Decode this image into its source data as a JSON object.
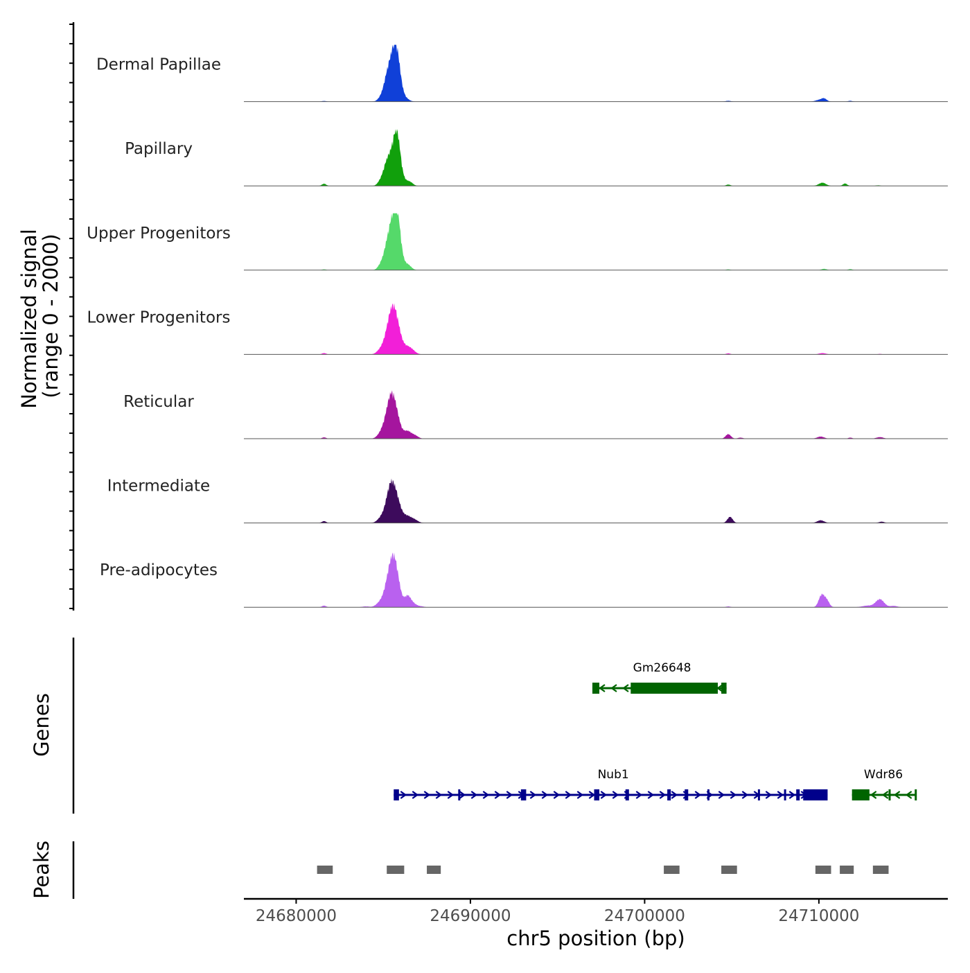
{
  "chart_data": {
    "type": "area",
    "title": "",
    "xlabel": "chr5 position (bp)",
    "ylabel_line1": "Normalized signal",
    "ylabel_line2": "(range 0 - 2000)",
    "xlim": [
      24677000,
      24717400
    ],
    "ylim": [
      0,
      2000
    ],
    "x_ticks": [
      24680000,
      24690000,
      24700000,
      24710000
    ],
    "x_tick_labels": [
      "24680000",
      "24690000",
      "24700000",
      "24710000"
    ],
    "tracks": [
      {
        "name": "Dermal Papillae",
        "color": "#1040d8",
        "peaks": [
          [
            24685500,
            1150,
            320
          ],
          [
            24685750,
            1320,
            220
          ],
          [
            24685200,
            350,
            200
          ],
          [
            24684800,
            60,
            150
          ],
          [
            24686300,
            90,
            200
          ],
          [
            24681600,
            25,
            120
          ],
          [
            24704800,
            30,
            150
          ],
          [
            24710000,
            60,
            200
          ],
          [
            24710300,
            110,
            150
          ],
          [
            24711800,
            30,
            120
          ]
        ]
      },
      {
        "name": "Papillary",
        "color": "#11a00c",
        "peaks": [
          [
            24685500,
            1000,
            300
          ],
          [
            24685800,
            1440,
            200
          ],
          [
            24685150,
            400,
            200
          ],
          [
            24684800,
            100,
            150
          ],
          [
            24686350,
            150,
            200
          ],
          [
            24686600,
            70,
            150
          ],
          [
            24681600,
            80,
            120
          ],
          [
            24704800,
            50,
            120
          ],
          [
            24710200,
            120,
            200
          ],
          [
            24711500,
            90,
            120
          ],
          [
            24713400,
            20,
            120
          ]
        ]
      },
      {
        "name": "Upper Progenitors",
        "color": "#55d96a",
        "peaks": [
          [
            24685550,
            1500,
            300
          ],
          [
            24685800,
            1300,
            200
          ],
          [
            24685200,
            400,
            250
          ],
          [
            24684800,
            80,
            150
          ],
          [
            24686400,
            200,
            200
          ],
          [
            24681600,
            30,
            120
          ],
          [
            24704800,
            30,
            120
          ],
          [
            24710300,
            50,
            150
          ],
          [
            24711800,
            40,
            120
          ]
        ]
      },
      {
        "name": "Lower Progenitors",
        "color": "#f21fd8",
        "peaks": [
          [
            24685600,
            1650,
            320
          ],
          [
            24685300,
            300,
            300
          ],
          [
            24684800,
            100,
            200
          ],
          [
            24686400,
            220,
            220
          ],
          [
            24686700,
            100,
            200
          ],
          [
            24681600,
            50,
            120
          ],
          [
            24704800,
            40,
            120
          ],
          [
            24710200,
            50,
            200
          ],
          [
            24713500,
            20,
            120
          ]
        ]
      },
      {
        "name": "Reticular",
        "color": "#a5159e",
        "peaks": [
          [
            24685600,
            1200,
            300
          ],
          [
            24685350,
            700,
            250
          ],
          [
            24684900,
            200,
            220
          ],
          [
            24686400,
            250,
            200
          ],
          [
            24686800,
            120,
            200
          ],
          [
            24681600,
            50,
            120
          ],
          [
            24704800,
            170,
            150
          ],
          [
            24705500,
            40,
            150
          ],
          [
            24710100,
            80,
            200
          ],
          [
            24711800,
            40,
            120
          ],
          [
            24713500,
            60,
            200
          ]
        ]
      },
      {
        "name": "Intermediate",
        "color": "#3d0b5c",
        "peaks": [
          [
            24685650,
            1150,
            300
          ],
          [
            24685350,
            700,
            220
          ],
          [
            24684900,
            200,
            220
          ],
          [
            24686400,
            220,
            220
          ],
          [
            24686800,
            110,
            200
          ],
          [
            24681600,
            70,
            120
          ],
          [
            24704900,
            230,
            150
          ],
          [
            24710100,
            100,
            200
          ],
          [
            24713600,
            50,
            150
          ]
        ]
      },
      {
        "name": "Pre-adipocytes",
        "color": "#b961ef",
        "peaks": [
          [
            24685650,
            1600,
            260
          ],
          [
            24685300,
            800,
            250
          ],
          [
            24684800,
            150,
            220
          ],
          [
            24686400,
            400,
            180
          ],
          [
            24686750,
            120,
            200
          ],
          [
            24681600,
            60,
            120
          ],
          [
            24684000,
            30,
            200
          ],
          [
            24687200,
            30,
            150
          ],
          [
            24704800,
            30,
            120
          ],
          [
            24710150,
            450,
            160
          ],
          [
            24710450,
            250,
            150
          ],
          [
            24713500,
            300,
            240
          ],
          [
            24712800,
            60,
            300
          ],
          [
            24714300,
            50,
            200
          ]
        ]
      }
    ],
    "genes_label": "Genes",
    "genes": [
      {
        "name": "Gm26648",
        "color": "#006400",
        "strand": "-",
        "row": 1,
        "label_x": 24701000,
        "start": 24697000,
        "end": 24704700,
        "exons": [
          [
            24697000,
            24697400
          ],
          [
            24699200,
            24704200
          ],
          [
            24704400,
            24704700
          ]
        ]
      },
      {
        "name": "Nub1",
        "color": "#00008b",
        "strand": "+",
        "row": 2,
        "label_x": 24698200,
        "start": 24685600,
        "end": 24710500,
        "exons": [
          [
            24685600,
            24685900
          ],
          [
            24689300,
            24689400
          ],
          [
            24692900,
            24693200
          ],
          [
            24697100,
            24697400
          ],
          [
            24698900,
            24699100
          ],
          [
            24701300,
            24701500
          ],
          [
            24702300,
            24702500
          ],
          [
            24703600,
            24703700
          ],
          [
            24706500,
            24706600
          ],
          [
            24708000,
            24708100
          ],
          [
            24708700,
            24708900
          ],
          [
            24709100,
            24710500
          ]
        ]
      },
      {
        "name": "Wdr86",
        "color": "#006400",
        "strand": "-",
        "row": 2,
        "label_x": 24713700,
        "start": 24711900,
        "end": 24715600,
        "exons": [
          [
            24711900,
            24712900
          ],
          [
            24714000,
            24714100
          ],
          [
            24715500,
            24715600
          ]
        ]
      }
    ],
    "peaks_label": "Peaks",
    "peak_regions": [
      [
        24681200,
        24682100
      ],
      [
        24685200,
        24686200
      ],
      [
        24687500,
        24688300
      ],
      [
        24701100,
        24702000
      ],
      [
        24704400,
        24705300
      ],
      [
        24709800,
        24710700
      ],
      [
        24711200,
        24712000
      ],
      [
        24713100,
        24714000
      ]
    ]
  }
}
